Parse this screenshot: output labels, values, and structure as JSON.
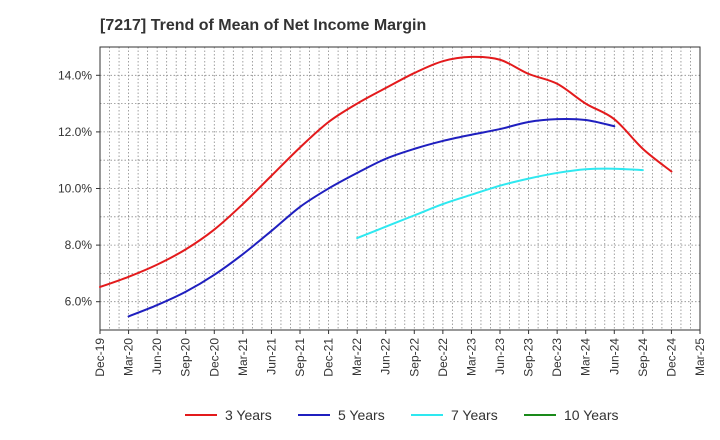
{
  "chart_data": {
    "type": "line",
    "title": "[7217]  Trend of Mean of Net Income Margin",
    "xlabel": "",
    "ylabel": "",
    "x_ticks": [
      "Dec-19",
      "Mar-20",
      "Jun-20",
      "Sep-20",
      "Dec-20",
      "Mar-21",
      "Jun-21",
      "Sep-21",
      "Dec-21",
      "Mar-22",
      "Jun-22",
      "Sep-22",
      "Dec-22",
      "Mar-23",
      "Jun-23",
      "Sep-23",
      "Dec-23",
      "Mar-24",
      "Jun-24",
      "Sep-24",
      "Dec-24",
      "Mar-25"
    ],
    "y_ticks": [
      "6.0%",
      "8.0%",
      "10.0%",
      "12.0%",
      "14.0%"
    ],
    "y_tick_values": [
      6,
      8,
      10,
      12,
      14
    ],
    "ylim": [
      5.0,
      15.0
    ],
    "grid": true,
    "legend_position": "bottom",
    "series": [
      {
        "name": "3 Years",
        "color": "#e31a1c",
        "start_index": 0,
        "values": [
          6.52,
          6.88,
          7.31,
          7.85,
          8.55,
          9.45,
          10.45,
          11.45,
          12.35,
          13.0,
          13.55,
          14.08,
          14.5,
          14.65,
          14.55,
          14.05,
          13.7,
          13.0,
          12.45,
          11.4,
          10.6
        ]
      },
      {
        "name": "5 Years",
        "color": "#1f1fbf",
        "start_index": 1,
        "values": [
          5.48,
          5.88,
          6.35,
          6.95,
          7.68,
          8.5,
          9.35,
          10.0,
          10.55,
          11.05,
          11.4,
          11.68,
          11.9,
          12.1,
          12.35,
          12.45,
          12.42,
          12.2
        ]
      },
      {
        "name": "7 Years",
        "color": "#2ee8f0",
        "start_index": 9,
        "values": [
          8.25,
          8.65,
          9.05,
          9.45,
          9.78,
          10.1,
          10.35,
          10.55,
          10.68,
          10.7,
          10.65
        ]
      },
      {
        "name": "10 Years",
        "color": "#1a8a1a",
        "start_index": 0,
        "values": []
      }
    ]
  }
}
